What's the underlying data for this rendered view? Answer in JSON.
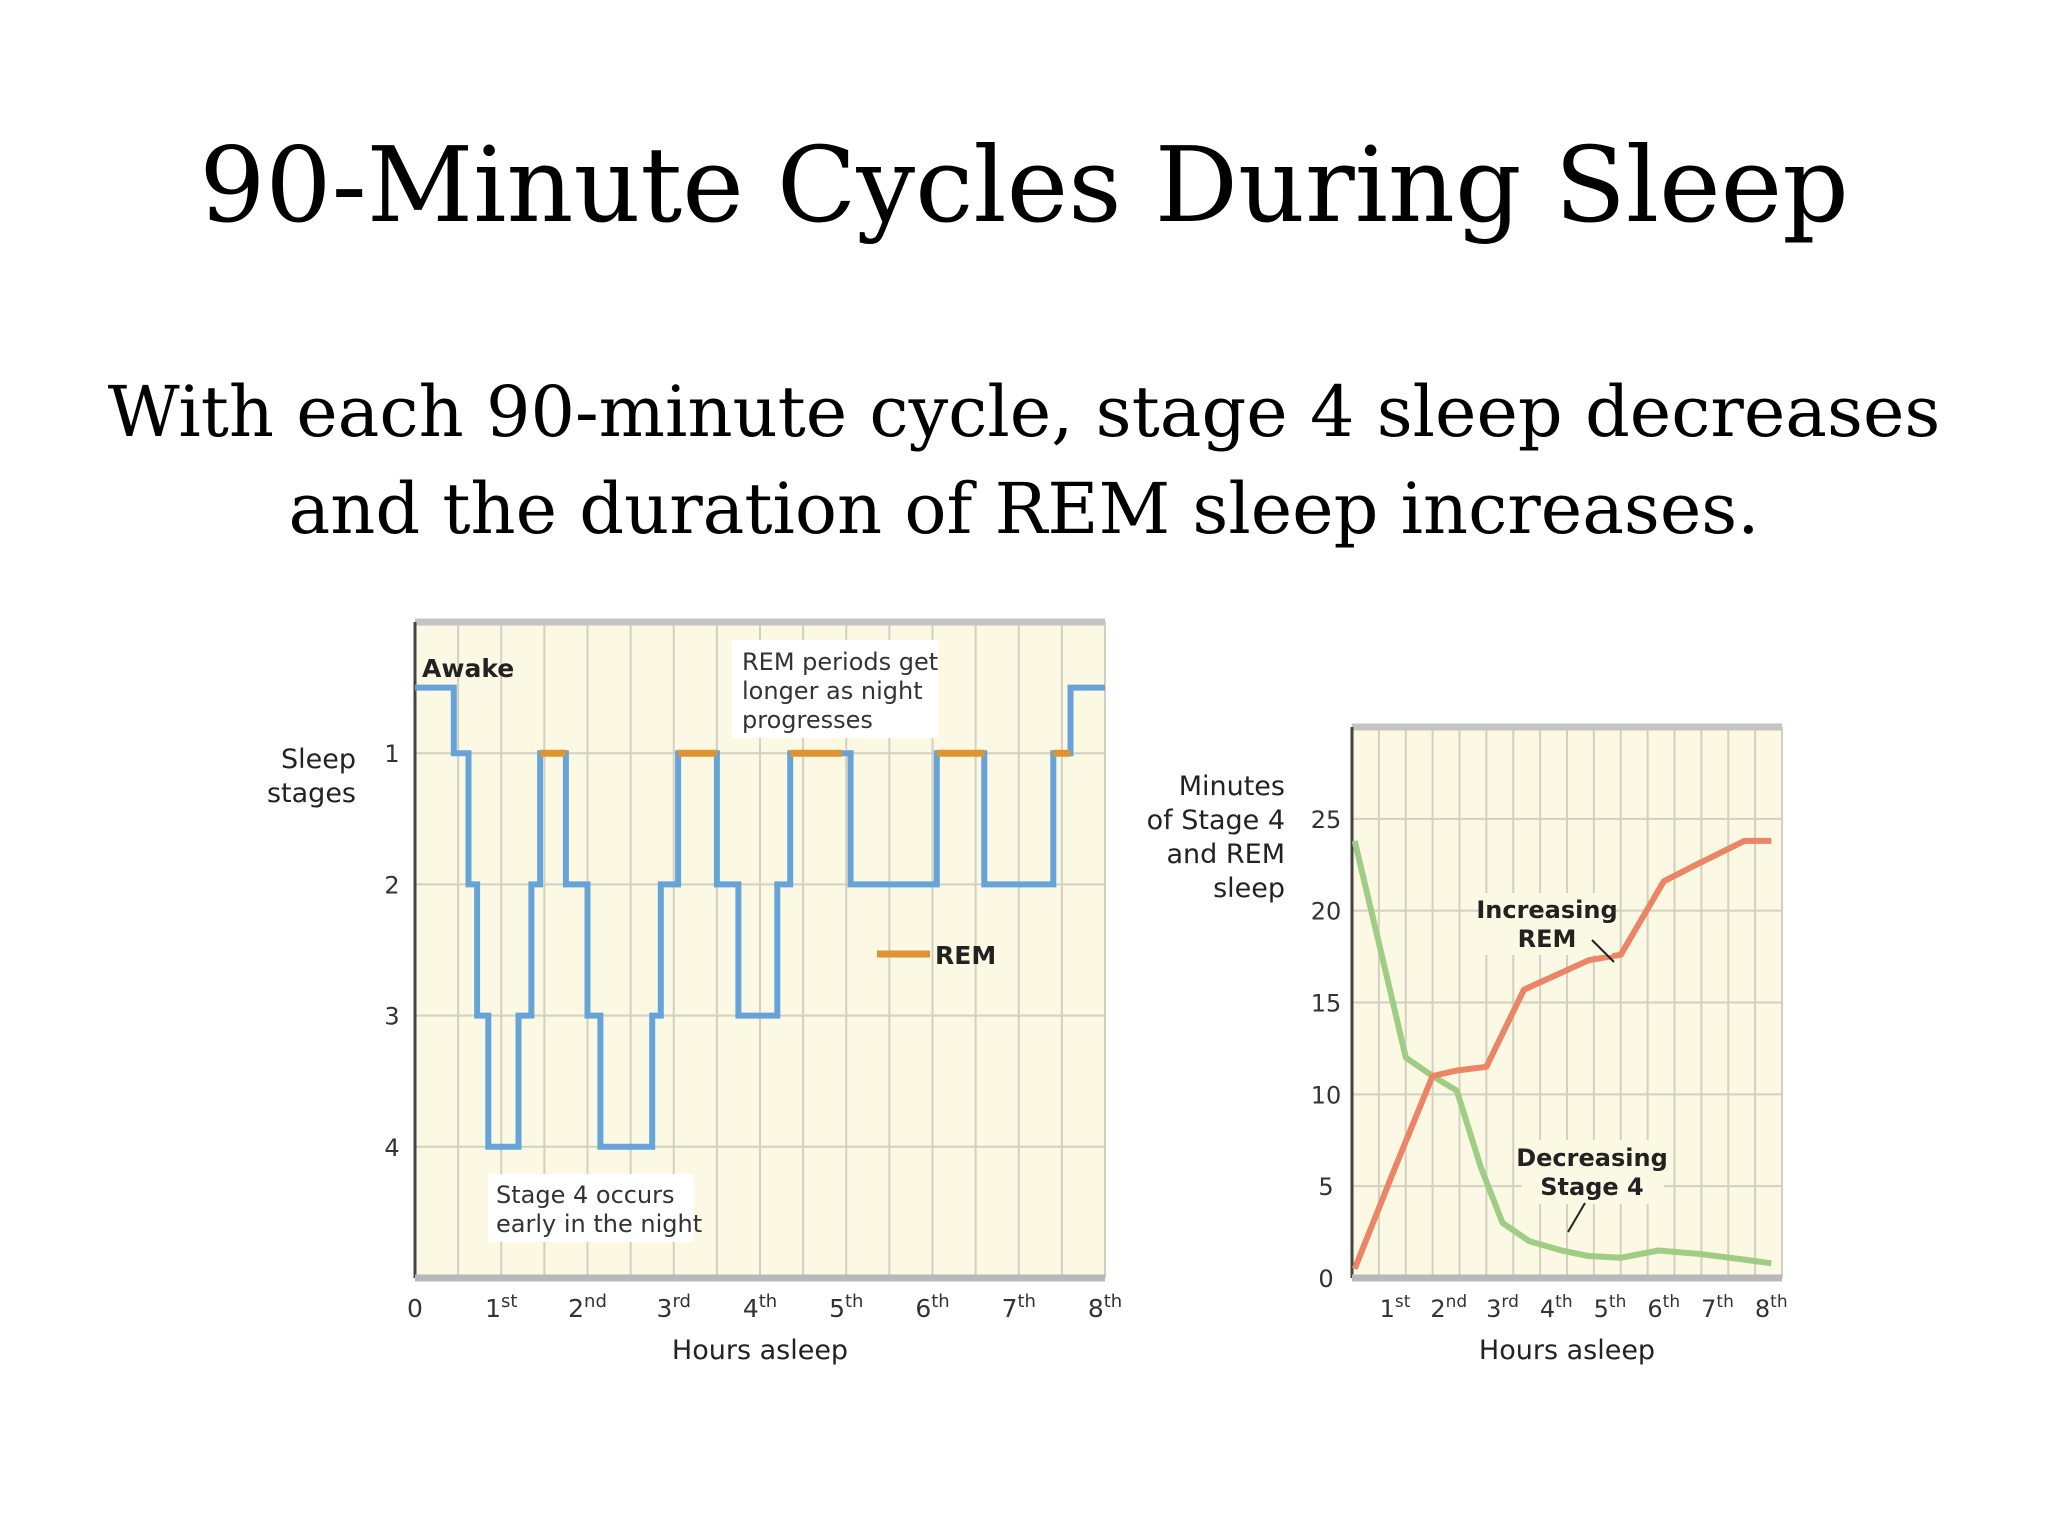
{
  "slide": {
    "title": "90-Minute Cycles During Sleep",
    "subtitle_lines": [
      "With each 90-minute cycle, stage 4 sleep decreases",
      "and the duration of REM sleep increases."
    ]
  },
  "colors": {
    "background": "#ffffff",
    "plot_bg": "#fbf8e4",
    "grid": "#d3d0c0",
    "stage_line": "#66a3d9",
    "rem": "#de9431",
    "rem_line": "#ec8466",
    "stage4_line": "#9fcd85"
  },
  "chart_data": [
    {
      "type": "line",
      "subtype": "step",
      "ylabel_lines": [
        "Sleep",
        "stages"
      ],
      "xlabel": "Hours asleep",
      "x_ticks": [
        {
          "value": 0,
          "num": "0",
          "sup": ""
        },
        {
          "value": 1,
          "num": "1",
          "sup": "st"
        },
        {
          "value": 2,
          "num": "2",
          "sup": "nd"
        },
        {
          "value": 3,
          "num": "3",
          "sup": "rd"
        },
        {
          "value": 4,
          "num": "4",
          "sup": "th"
        },
        {
          "value": 5,
          "num": "5",
          "sup": "th"
        },
        {
          "value": 6,
          "num": "6",
          "sup": "th"
        },
        {
          "value": 7,
          "num": "7",
          "sup": "th"
        },
        {
          "value": 8,
          "num": "8",
          "sup": "th"
        }
      ],
      "y_ticks": [
        {
          "value": 1,
          "label": "1"
        },
        {
          "value": 2,
          "label": "2"
        },
        {
          "value": 3,
          "label": "3"
        },
        {
          "value": 4,
          "label": "4"
        }
      ],
      "awake_label": "Awake",
      "xlim": [
        0,
        8
      ],
      "ylim": [
        0,
        5
      ],
      "awake_level": 0.5,
      "series": [
        {
          "points": [
            [
              0,
              0.5
            ],
            [
              0.45,
              0.5
            ],
            [
              0.45,
              1
            ],
            [
              0.62,
              1
            ],
            [
              0.62,
              2
            ],
            [
              0.72,
              2
            ],
            [
              0.72,
              3
            ],
            [
              0.85,
              3
            ],
            [
              0.85,
              4
            ],
            [
              1.2,
              4
            ],
            [
              1.2,
              3
            ],
            [
              1.35,
              3
            ],
            [
              1.35,
              2
            ],
            [
              1.45,
              2
            ],
            [
              1.45,
              1
            ],
            [
              1.75,
              1
            ],
            [
              1.75,
              2
            ],
            [
              2.0,
              2
            ],
            [
              2.0,
              3
            ],
            [
              2.15,
              3
            ],
            [
              2.15,
              4
            ],
            [
              2.75,
              4
            ],
            [
              2.75,
              3
            ],
            [
              2.85,
              3
            ],
            [
              2.85,
              2
            ],
            [
              3.05,
              2
            ],
            [
              3.05,
              1
            ],
            [
              3.5,
              1
            ],
            [
              3.5,
              2
            ],
            [
              3.75,
              2
            ],
            [
              3.75,
              3
            ],
            [
              4.2,
              3
            ],
            [
              4.2,
              2
            ],
            [
              4.35,
              2
            ],
            [
              4.35,
              1
            ],
            [
              5.05,
              1
            ],
            [
              5.05,
              2
            ],
            [
              6.05,
              2
            ],
            [
              6.05,
              1
            ],
            [
              6.6,
              1
            ],
            [
              6.6,
              2
            ],
            [
              7.4,
              2
            ],
            [
              7.4,
              1
            ],
            [
              7.6,
              1
            ],
            [
              7.6,
              0.5
            ],
            [
              8,
              0.5
            ]
          ]
        }
      ],
      "rem_periods": [
        [
          1.45,
          1.75
        ],
        [
          3.05,
          3.5
        ],
        [
          4.35,
          4.95
        ],
        [
          6.05,
          6.6
        ],
        [
          7.4,
          7.6
        ]
      ],
      "legend": {
        "label": "REM",
        "placement": "center-right"
      },
      "annotations": {
        "rem_note": [
          "REM periods get",
          "longer as night",
          "progresses"
        ],
        "stage4_note": [
          "Stage 4 occurs",
          "early in the night"
        ]
      }
    },
    {
      "type": "line",
      "ylabel_lines": [
        "Minutes",
        "of Stage 4",
        "and REM",
        "sleep"
      ],
      "xlabel": "Hours asleep",
      "x_ticks": [
        {
          "value": 1,
          "num": "1",
          "sup": "st"
        },
        {
          "value": 2,
          "num": "2",
          "sup": "nd"
        },
        {
          "value": 3,
          "num": "3",
          "sup": "rd"
        },
        {
          "value": 4,
          "num": "4",
          "sup": "th"
        },
        {
          "value": 5,
          "num": "5",
          "sup": "th"
        },
        {
          "value": 6,
          "num": "6",
          "sup": "th"
        },
        {
          "value": 7,
          "num": "7",
          "sup": "th"
        },
        {
          "value": 8,
          "num": "8",
          "sup": "th"
        }
      ],
      "y_ticks": [
        {
          "value": 0,
          "label": "0"
        },
        {
          "value": 5,
          "label": "5"
        },
        {
          "value": 10,
          "label": "10"
        },
        {
          "value": 15,
          "label": "15"
        },
        {
          "value": 20,
          "label": "20"
        },
        {
          "value": 25,
          "label": "25"
        }
      ],
      "xlim": [
        0.2,
        8.2
      ],
      "ylim": [
        0,
        30
      ],
      "series": [
        {
          "name": "Increasing REM",
          "label_lines": [
            "Increasing",
            "REM"
          ],
          "x": [
            0.25,
            1.0,
            1.7,
            2.15,
            2.7,
            3.4,
            4.0,
            4.6,
            5.2,
            6.0,
            6.6,
            7.5,
            8.0
          ],
          "y": [
            0.5,
            6.0,
            11.0,
            11.3,
            11.5,
            15.7,
            16.5,
            17.3,
            17.6,
            21.6,
            22.5,
            23.8,
            23.8
          ]
        },
        {
          "name": "Decreasing Stage 4",
          "label_lines": [
            "Decreasing",
            "Stage 4"
          ],
          "x": [
            0.25,
            0.8,
            1.2,
            1.7,
            2.15,
            2.6,
            3.0,
            3.5,
            4.1,
            4.6,
            5.2,
            5.9,
            6.7,
            7.5,
            8.0
          ],
          "y": [
            23.8,
            17.0,
            12.0,
            11.0,
            10.2,
            6.0,
            3.0,
            2.0,
            1.5,
            1.2,
            1.1,
            1.5,
            1.3,
            1.0,
            0.8
          ]
        }
      ]
    }
  ]
}
